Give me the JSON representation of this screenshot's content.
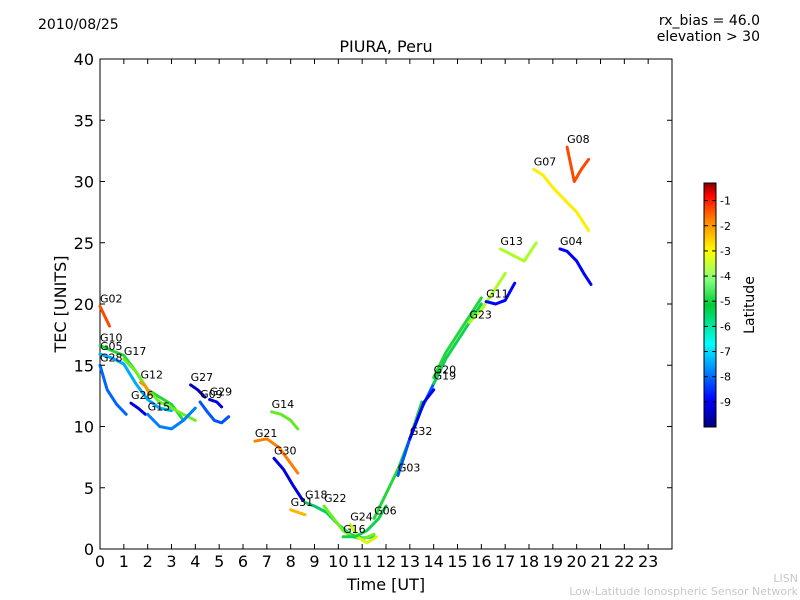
{
  "header": {
    "date": "2010/08/25",
    "rx_bias": "rx_bias = 46.0",
    "elevation": "elevation > 30",
    "title": "PIURA, Peru"
  },
  "footer": {
    "org_short": "LISN",
    "org_long": "Low-Latitude Ionospheric Sensor Network"
  },
  "colors": {
    "colormap": [
      "#00007f",
      "#0000ff",
      "#007fff",
      "#00ffff",
      "#7fff7f",
      "#ffff00",
      "#ff7f00",
      "#ff0000",
      "#7f0000"
    ]
  },
  "chart_data": {
    "type": "line",
    "title": "PIURA, Peru",
    "xlabel": "Time [UT]",
    "ylabel": "TEC [UNITS]",
    "xlim": [
      0,
      24
    ],
    "ylim": [
      0,
      40
    ],
    "xticks": [
      0,
      1,
      2,
      3,
      4,
      5,
      6,
      7,
      8,
      9,
      10,
      11,
      12,
      13,
      14,
      15,
      16,
      17,
      18,
      19,
      20,
      21,
      22,
      23
    ],
    "yticks": [
      0,
      5,
      10,
      15,
      20,
      25,
      30,
      35,
      40
    ],
    "grid": false,
    "colorbar": {
      "label": "Latitude",
      "range": [
        -10,
        -0.3
      ],
      "ticks": [
        -1,
        -2,
        -3,
        -4,
        -5,
        -6,
        -7,
        -8,
        -9
      ]
    },
    "series": [
      {
        "name": "G02",
        "lat": -1.5,
        "x": [
          0.0,
          0.2,
          0.4
        ],
        "y": [
          19.8,
          19.0,
          18.2
        ]
      },
      {
        "name": "G10",
        "lat": -5.5,
        "x": [
          0.0,
          0.5,
          1.0,
          1.5,
          2.0,
          2.5,
          3.0,
          3.5
        ],
        "y": [
          16.6,
          16.2,
          15.8,
          14.5,
          13.0,
          12.4,
          11.8,
          10.5
        ]
      },
      {
        "name": "G05",
        "lat": -7.0,
        "x": [
          0.0,
          0.5,
          1.0,
          1.5,
          2.0,
          2.5,
          3.0
        ],
        "y": [
          15.9,
          15.6,
          15.1,
          13.5,
          12.2,
          11.5,
          11.3
        ]
      },
      {
        "name": "G28",
        "lat": -7.8,
        "x": [
          0.0,
          0.3,
          0.7,
          1.1
        ],
        "y": [
          15.0,
          13.0,
          11.8,
          11.0
        ]
      },
      {
        "name": "G17",
        "lat": -4.5,
        "x": [
          1.0,
          1.5,
          2.0,
          2.5,
          3.0,
          3.5,
          4.0
        ],
        "y": [
          15.5,
          14.5,
          13.0,
          12.0,
          11.5,
          11.0,
          10.5
        ]
      },
      {
        "name": "G12",
        "lat": -2.2,
        "x": [
          1.7,
          1.9,
          2.1
        ],
        "y": [
          13.6,
          13.3,
          12.6
        ]
      },
      {
        "name": "G26",
        "lat": -9.2,
        "x": [
          1.3,
          1.6,
          1.9
        ],
        "y": [
          11.9,
          11.5,
          11.0
        ]
      },
      {
        "name": "G15",
        "lat": -7.5,
        "x": [
          2.0,
          2.5,
          3.0,
          3.5,
          4.0
        ],
        "y": [
          11.0,
          10.0,
          9.8,
          10.5,
          11.5
        ]
      },
      {
        "name": "G27",
        "lat": -9.5,
        "x": [
          3.8,
          4.1,
          4.4
        ],
        "y": [
          13.4,
          13.0,
          12.4
        ]
      },
      {
        "name": "G09",
        "lat": -8.0,
        "x": [
          4.2,
          4.5,
          4.8,
          5.1,
          5.4
        ],
        "y": [
          12.0,
          11.2,
          10.5,
          10.3,
          10.8
        ]
      },
      {
        "name": "G29",
        "lat": -9.3,
        "x": [
          4.6,
          4.9,
          5.1
        ],
        "y": [
          12.2,
          12.0,
          11.6
        ]
      },
      {
        "name": "G21",
        "lat": -2.0,
        "x": [
          6.5,
          7.0,
          7.5,
          8.0,
          8.3
        ],
        "y": [
          8.8,
          9.0,
          8.3,
          7.0,
          6.2
        ]
      },
      {
        "name": "G14",
        "lat": -4.6,
        "x": [
          7.2,
          7.6,
          8.0,
          8.3
        ],
        "y": [
          11.2,
          11.0,
          10.5,
          9.8
        ]
      },
      {
        "name": "G30",
        "lat": -9.2,
        "x": [
          7.3,
          7.7,
          8.1,
          8.5
        ],
        "y": [
          7.4,
          6.5,
          5.2,
          4.0
        ]
      },
      {
        "name": "G31",
        "lat": -2.5,
        "x": [
          8.0,
          8.3,
          8.6
        ],
        "y": [
          3.2,
          3.0,
          2.8
        ]
      },
      {
        "name": "G18",
        "lat": -6.5,
        "x": [
          8.6,
          9.0,
          9.5,
          10.0,
          10.5,
          11.0,
          11.5
        ],
        "y": [
          3.8,
          3.5,
          3.0,
          2.0,
          1.2,
          0.9,
          1.0
        ]
      },
      {
        "name": "G22",
        "lat": -4.5,
        "x": [
          9.4,
          9.8,
          10.2,
          10.6,
          11.0,
          11.5
        ],
        "y": [
          3.5,
          2.5,
          1.5,
          1.0,
          0.8,
          1.2
        ]
      },
      {
        "name": "G24",
        "lat": -3.5,
        "x": [
          10.5,
          10.8,
          11.2,
          11.6
        ],
        "y": [
          2.0,
          1.0,
          0.5,
          1.0
        ]
      },
      {
        "name": "G16",
        "lat": -6.0,
        "x": [
          10.2,
          10.7,
          11.2,
          11.7,
          12.0
        ],
        "y": [
          1.0,
          1.0,
          1.5,
          2.5,
          3.5
        ]
      },
      {
        "name": "G06",
        "lat": -5.5,
        "x": [
          11.5,
          12.0,
          12.5,
          13.0,
          13.5
        ],
        "y": [
          2.5,
          4.5,
          6.5,
          9.0,
          12.0
        ]
      },
      {
        "name": "G03",
        "lat": -8.0,
        "x": [
          12.5,
          13.0,
          13.5,
          14.0,
          14.5
        ],
        "y": [
          6.0,
          9.0,
          11.5,
          13.5,
          15.5
        ]
      },
      {
        "name": "G32",
        "lat": -9.0,
        "x": [
          13.0,
          13.3,
          13.6,
          14.0
        ],
        "y": [
          9.0,
          10.5,
          12.0,
          13.0
        ]
      },
      {
        "name": "G19",
        "lat": -6.0,
        "x": [
          14.0,
          14.5,
          15.0,
          15.5,
          16.0
        ],
        "y": [
          13.5,
          15.5,
          17.0,
          18.5,
          20.0
        ]
      },
      {
        "name": "G20",
        "lat": -5.5,
        "x": [
          14.0,
          14.5,
          15.0,
          15.5,
          16.0
        ],
        "y": [
          14.0,
          16.0,
          17.5,
          19.0,
          20.5
        ]
      },
      {
        "name": "G23",
        "lat": -4.0,
        "x": [
          15.5,
          16.0,
          16.5,
          17.0
        ],
        "y": [
          18.5,
          19.5,
          21.0,
          22.5
        ]
      },
      {
        "name": "G11",
        "lat": -9.0,
        "x": [
          16.2,
          16.6,
          17.0,
          17.4
        ],
        "y": [
          20.2,
          20.0,
          20.3,
          21.7
        ]
      },
      {
        "name": "G13",
        "lat": -4.0,
        "x": [
          16.8,
          17.3,
          17.8,
          18.3
        ],
        "y": [
          24.5,
          24.0,
          23.5,
          25.0
        ]
      },
      {
        "name": "G07",
        "lat": -3.0,
        "x": [
          18.2,
          18.6,
          19.0,
          19.5,
          20.0,
          20.5
        ],
        "y": [
          31.0,
          30.5,
          29.5,
          28.5,
          27.5,
          26.0
        ]
      },
      {
        "name": "G08",
        "lat": -1.5,
        "x": [
          19.6,
          19.9,
          20.2,
          20.5
        ],
        "y": [
          32.8,
          30.0,
          31.0,
          31.8
        ]
      },
      {
        "name": "G04",
        "lat": -9.0,
        "x": [
          19.3,
          19.6,
          20.0,
          20.3,
          20.6
        ],
        "y": [
          24.5,
          24.3,
          23.5,
          22.5,
          21.6
        ]
      }
    ]
  }
}
